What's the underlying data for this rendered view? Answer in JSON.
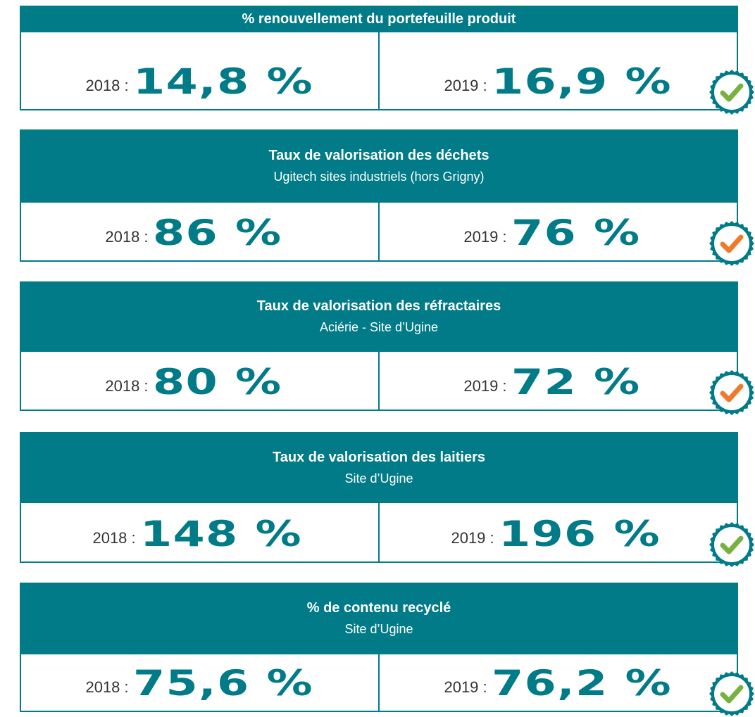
{
  "cards": [
    {
      "title": "% renouvellement du portefeuille produit",
      "left": {
        "year": "2018 :",
        "value": "14,8 %"
      },
      "right": {
        "year": "2019 :",
        "value": "16,9 %"
      },
      "check_color": "#77b23f"
    },
    {
      "title": "Taux de valorisation des déchets",
      "subtitle": "Ugitech sites industriels (hors Grigny)",
      "left": {
        "year": "2018 :",
        "value": "86 %"
      },
      "right": {
        "year": "2019 :",
        "value": "76 %"
      },
      "check_color": "#ee7a2c"
    },
    {
      "title": "Taux de valorisation des réfractaires",
      "subtitle": "Aciérie - Site d’Ugine",
      "left": {
        "year": "2018 :",
        "value": "80 %"
      },
      "right": {
        "year": "2019 :",
        "value": "72 %"
      },
      "check_color": "#ee7a2c"
    },
    {
      "title": "Taux de valorisation des laitiers",
      "subtitle": "Site d’Ugine",
      "left": {
        "year": "2018 :",
        "value": "148 %"
      },
      "right": {
        "year": "2019 :",
        "value": "196 %"
      },
      "check_color": "#77b23f"
    },
    {
      "title": "% de contenu recyclé",
      "subtitle": "Site d’Ugine",
      "left": {
        "year": "2018 :",
        "value": "75,6 %"
      },
      "right": {
        "year": "2019 :",
        "value": "76,2 %"
      },
      "check_color": "#77b23f"
    }
  ]
}
